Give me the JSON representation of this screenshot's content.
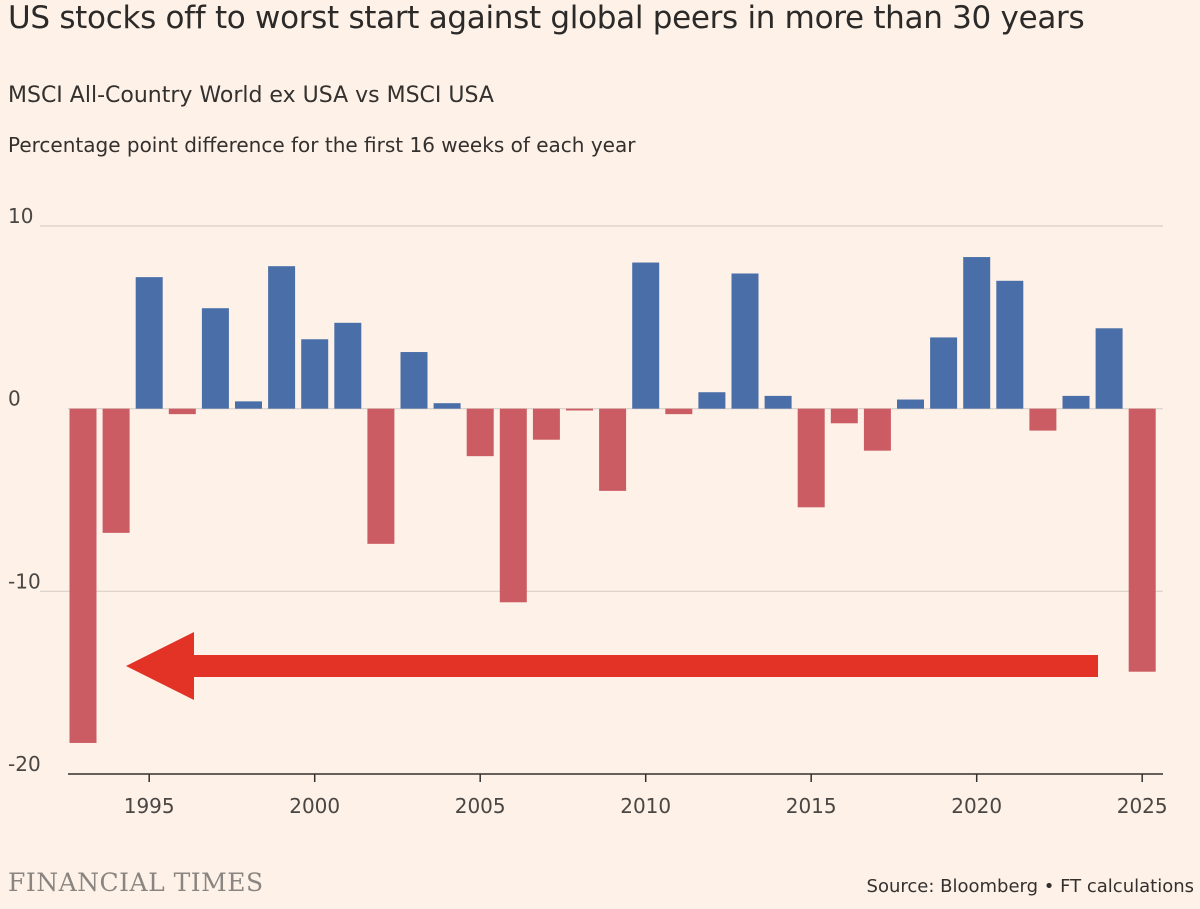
{
  "chart_data": {
    "type": "bar",
    "title": "US stocks off to worst start against global peers in more than 30 years",
    "subtitle": "MSCI All-Country World ex USA vs MSCI USA",
    "ylabel": "Percentage point difference for the first 16 weeks of each year",
    "xlabel": "",
    "ylim": [
      -20,
      10
    ],
    "yticks": [
      {
        "value": 10,
        "label": "10"
      },
      {
        "value": 0,
        "label": "0"
      },
      {
        "value": -10,
        "label": "-10"
      },
      {
        "value": -20,
        "label": "-20"
      }
    ],
    "xticks": [
      {
        "value": 1995,
        "label": "1995"
      },
      {
        "value": 2000,
        "label": "2000"
      },
      {
        "value": 2005,
        "label": "2005"
      },
      {
        "value": 2010,
        "label": "2010"
      },
      {
        "value": 2015,
        "label": "2015"
      },
      {
        "value": 2020,
        "label": "2020"
      },
      {
        "value": 2025,
        "label": "2025"
      }
    ],
    "categories": [
      1993,
      1994,
      1995,
      1996,
      1997,
      1998,
      1999,
      2000,
      2001,
      2002,
      2003,
      2004,
      2005,
      2006,
      2007,
      2008,
      2009,
      2010,
      2011,
      2012,
      2013,
      2014,
      2015,
      2016,
      2017,
      2018,
      2019,
      2020,
      2021,
      2022,
      2023,
      2024,
      2025
    ],
    "values": [
      -18.3,
      -6.8,
      7.2,
      -0.3,
      5.5,
      0.4,
      7.8,
      3.8,
      4.7,
      -7.4,
      3.1,
      0.3,
      -2.6,
      -10.6,
      -1.7,
      -0.1,
      -4.5,
      8.0,
      -0.3,
      0.9,
      7.4,
      0.7,
      -5.4,
      -0.8,
      -2.3,
      0.5,
      3.9,
      8.3,
      7.0,
      -1.2,
      0.7,
      4.4,
      -14.4
    ],
    "grid": true,
    "colors": {
      "positive": "#4a6fa8",
      "negative": "#cc5c64",
      "arrow": "#e33226",
      "grid": "#d8d0c8",
      "axis": "#33302e"
    },
    "annotation": "arrow pointing left from 2025 toward 1993"
  },
  "branding": "FINANCIAL TIMES",
  "source": "Source: Bloomberg • FT calculations"
}
